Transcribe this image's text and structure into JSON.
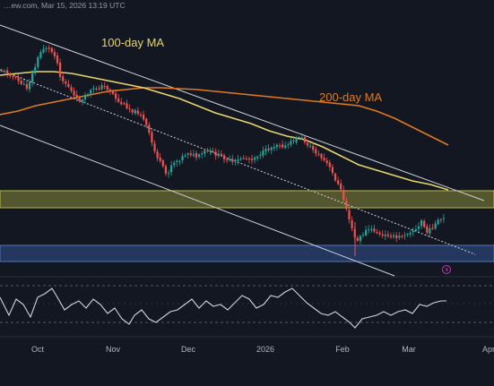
{
  "header": {
    "text": "…ew.com, Mar 15, 2026 13:19 UTC"
  },
  "colors": {
    "background": "#131722",
    "candle_up": "#26a69a",
    "candle_down": "#ef5350",
    "ma100": "#e8d56a",
    "ma200": "#e07a1c",
    "channel": "#d1d4dc",
    "resistance_zone": "#8a8a36",
    "support_zone": "#2f4d88",
    "rsi_line": "#d1d4dc",
    "axis_text": "#b2b5be"
  },
  "chart_data": [
    {
      "type": "candlestick",
      "panel": "price",
      "annotations": [
        {
          "id": "ma100",
          "text": "100-day MA",
          "color": "#e8d56a"
        },
        {
          "id": "ma200",
          "text": "200-day MA",
          "color": "#e07a1c"
        }
      ],
      "x_ticks": [
        "Oct",
        "Nov",
        "Dec",
        "2026",
        "Feb",
        "Mar",
        "Apr"
      ],
      "grid": false,
      "legend": "none",
      "series": [
        {
          "name": "100-day MA",
          "color": "#e8d56a"
        },
        {
          "name": "200-day MA",
          "color": "#e07a1c"
        }
      ],
      "zones": [
        {
          "kind": "resistance",
          "color": "#8a8a36"
        },
        {
          "kind": "support",
          "color": "#2f4d88"
        }
      ],
      "icon": "lightning-icon"
    },
    {
      "type": "line",
      "panel": "rsi",
      "grid": false,
      "legend": "none",
      "reference_lines": "dashed"
    }
  ]
}
